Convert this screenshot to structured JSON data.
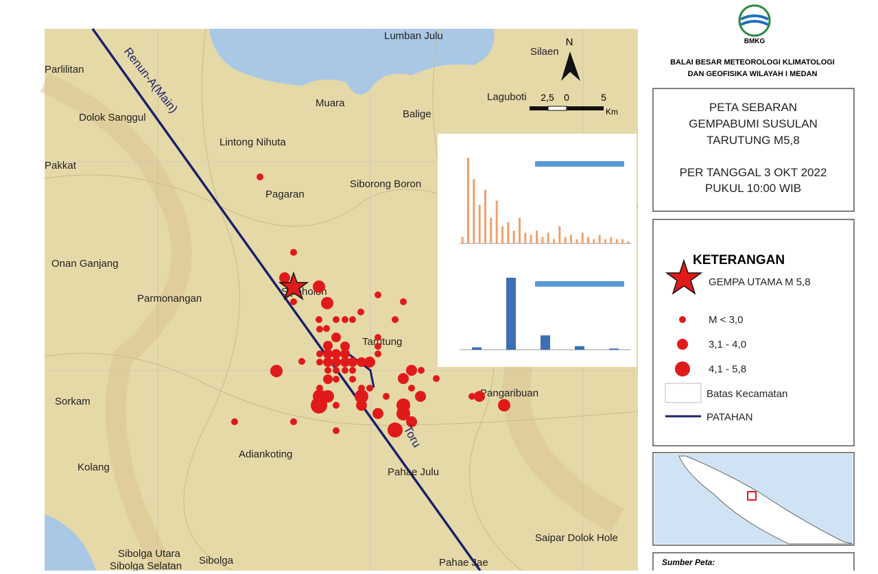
{
  "header": {
    "logo": "BMKG",
    "org_line1": "BALAI BESAR METEOROLOGI KLIMATOLOGI",
    "org_line2": "DAN GEOFISIKA WILAYAH I MEDAN"
  },
  "title_box": {
    "lines": [
      "PETA SEBARAN",
      "GEMPABUMI SUSULAN",
      "TARUTUNG M5,8",
      "PER TANGGAL 3 OKT 2022",
      "PUKUL 10:00 WIB"
    ]
  },
  "legend": {
    "title": "KETERANGAN",
    "items": [
      "GEMPA UTAMA M 5,8",
      "M < 3,0",
      "3,1 - 4,0",
      "4,1 - 5,8",
      "Batas Kecamatan",
      "PATAHAN"
    ]
  },
  "map": {
    "places": [
      "Lumban Julu",
      "Parlilitan",
      "Silaen",
      "Muara",
      "Laguboti",
      "Balige",
      "Dolok Sanggul",
      "Lintong Nihuta",
      "Pakkat",
      "Pagaran",
      "Siborong Boron",
      "Onan Ganjang",
      "Sipoholon",
      "Parmonangan",
      "Tarutung",
      "Sorkam",
      "Pangaribuan",
      "Adiankoting",
      "Kolang",
      "Pahae Julu",
      "Saipar Dolok Hole",
      "Sibolga Utara",
      "Sibolga Selatan",
      "Sibolga",
      "Pahae Jae"
    ],
    "faults": [
      "Renun-A(Main)",
      "Toru"
    ],
    "north": "N",
    "scale": {
      "labels": [
        "2,5",
        "0",
        "5"
      ],
      "unit": "Km"
    }
  },
  "inset_charts": [
    {
      "values": [
        3,
        40,
        30,
        18,
        25,
        12,
        20,
        8,
        10,
        6,
        12,
        5,
        4,
        6,
        3,
        5,
        2,
        8,
        3,
        4,
        2,
        5,
        3,
        2,
        4,
        2,
        3,
        2,
        2,
        1
      ]
    },
    {
      "values": [
        2,
        60,
        12,
        3,
        1
      ]
    }
  ],
  "source": {
    "label": "Sumber Peta:"
  }
}
